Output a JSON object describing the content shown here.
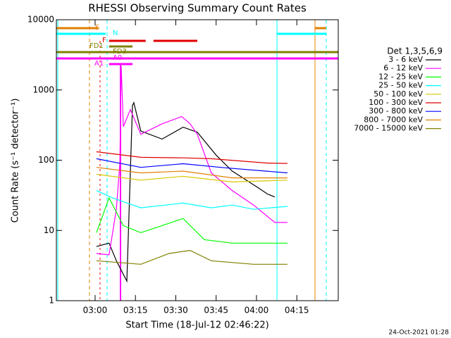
{
  "chart_data": {
    "type": "line",
    "title": "RHESSI Observing Summary Count Rates",
    "x_label": "Start Time (18-Jul-12 02:46:22)",
    "y_label": "Count Rate (s⁻¹ detector⁻¹)",
    "footer": "24-Oct-2021 01:28",
    "legend_title": "Det 1,3,5,6,9",
    "ylog": true,
    "ylim": [
      1,
      10000
    ],
    "yticks": [
      1,
      10,
      100,
      1000,
      10000
    ],
    "xlim": [
      165.6,
      270.4
    ],
    "xticks": [
      {
        "value": 180,
        "label": "03:00"
      },
      {
        "value": 195,
        "label": "03:15"
      },
      {
        "value": 210,
        "label": "03:30"
      },
      {
        "value": 225,
        "label": "03:45"
      },
      {
        "value": 240,
        "label": "04:00"
      },
      {
        "value": 255,
        "label": "04:15"
      }
    ],
    "series": [
      {
        "name": "3 - 6 keV",
        "color": "#000000",
        "x": [
          180.5,
          185.2,
          187.9,
          191.8,
          193.9,
          194.4,
          197.0,
          204.9,
          212.7,
          218.0,
          225.0,
          231.0,
          240.0,
          244.1,
          246.8
        ],
        "values": [
          5.9,
          6.6,
          3.7,
          1.9,
          600,
          660,
          260,
          200,
          295,
          250,
          118,
          70,
          42,
          33,
          30
        ]
      },
      {
        "name": "6 - 12 keV",
        "color": "#ff00ff",
        "x": [
          180.5,
          185.2,
          187.9,
          189.2,
          189.7,
          190.5,
          193.1,
          197.0,
          204.9,
          212.2,
          215.3,
          218.0,
          223.2,
          231.0,
          238.9,
          246.8,
          251.5
        ],
        "values": [
          4.7,
          4.5,
          20,
          90,
          2200,
          300,
          525,
          234,
          330,
          417,
          330,
          234,
          66,
          37,
          23,
          13,
          13
        ]
      },
      {
        "name": "12 - 25 keV",
        "color": "#00ff00",
        "x": [
          180.5,
          185.2,
          190.5,
          197.0,
          204.9,
          212.7,
          220.6,
          231.0,
          244.1,
          251.5
        ],
        "values": [
          9.3,
          29,
          11.7,
          9.3,
          11.7,
          14.8,
          7.4,
          6.6,
          6.6,
          6.6
        ]
      },
      {
        "name": "25 - 50 keV",
        "color": "#00ffff",
        "x": [
          180.5,
          186.5,
          197.0,
          212.7,
          223.2,
          231.0,
          238.9,
          251.5
        ],
        "values": [
          37,
          29,
          21,
          24.5,
          21,
          23,
          20,
          22
        ]
      },
      {
        "name": "50 - 100 keV",
        "color": "#d8c800",
        "x": [
          180.5,
          197.0,
          212.7,
          231.0,
          251.5
        ],
        "values": [
          63,
          52,
          59,
          49,
          52
        ]
      },
      {
        "name": "100 - 300 keV",
        "color": "#e00000",
        "x": [
          180.5,
          197.0,
          212.7,
          223.2,
          244.1,
          251.5
        ],
        "values": [
          132,
          110,
          108,
          105,
          91,
          90
        ]
      },
      {
        "name": "300 - 800 keV",
        "color": "#0000ff",
        "x": [
          180.5,
          197.0,
          212.7,
          228.4,
          251.5
        ],
        "values": [
          105,
          79,
          89,
          78,
          66
        ]
      },
      {
        "name": "800 - 7000 keV",
        "color": "#e08000",
        "x": [
          180.5,
          197.0,
          212.7,
          231.0,
          251.5
        ],
        "values": [
          79,
          66,
          70,
          56,
          56
        ]
      },
      {
        "name": "7000 - 15000 keV",
        "color": "#808000",
        "x": [
          180.5,
          197.0,
          207.5,
          215.3,
          223.2,
          238.9,
          251.5
        ],
        "values": [
          3.7,
          3.3,
          4.7,
          5.2,
          3.7,
          3.3,
          3.3
        ]
      }
    ],
    "flags": [
      {
        "label": "S",
        "color": "#e08000",
        "intervals": [
          [
            165.6,
            181.0
          ],
          [
            261.7,
            265.9
          ]
        ]
      },
      {
        "label": "N",
        "color": "#00ffff",
        "intervals": [
          [
            165.6,
            183.9
          ],
          [
            247.5,
            265.9
          ]
        ]
      },
      {
        "label": "F",
        "color": "#e00000",
        "intervals": [
          [
            185.2,
            198.8
          ],
          [
            201.7,
            218.0
          ]
        ]
      },
      {
        "label": "FD1",
        "color": "#808000",
        "intervals": [
          [
            185.2,
            193.9
          ]
        ]
      },
      {
        "label": "FD3",
        "color": "#808000",
        "intervals": [
          [
            165.6,
            270.4
          ]
        ]
      },
      {
        "label": "A0",
        "color": "#ff00ff",
        "intervals": [
          [
            165.6,
            270.4
          ]
        ]
      },
      {
        "label": "A1",
        "color": "#ff00ff",
        "intervals": [
          [
            185.2,
            193.9
          ]
        ]
      }
    ]
  }
}
